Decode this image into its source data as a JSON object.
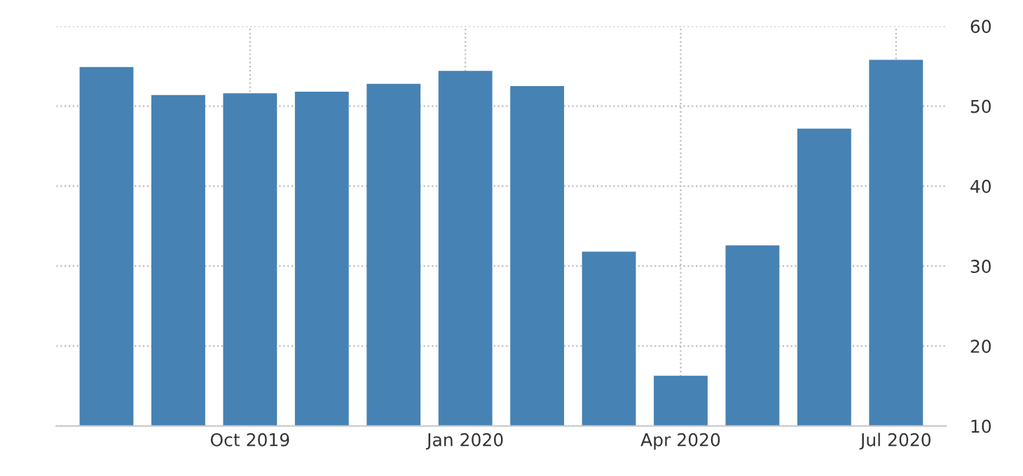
{
  "chart_data": {
    "type": "bar",
    "categories": [
      null,
      null,
      "Oct 2019",
      null,
      null,
      "Jan 2020",
      null,
      null,
      "Apr 2020",
      null,
      null,
      "Jul 2020"
    ],
    "values": [
      54.9,
      51.4,
      51.6,
      51.8,
      52.8,
      54.4,
      52.5,
      31.8,
      16.3,
      32.6,
      47.2,
      55.8
    ],
    "color": "#4682b4",
    "ylim": [
      10,
      60
    ],
    "yticks": [
      10,
      20,
      30,
      40,
      50,
      60
    ],
    "grid": true
  }
}
